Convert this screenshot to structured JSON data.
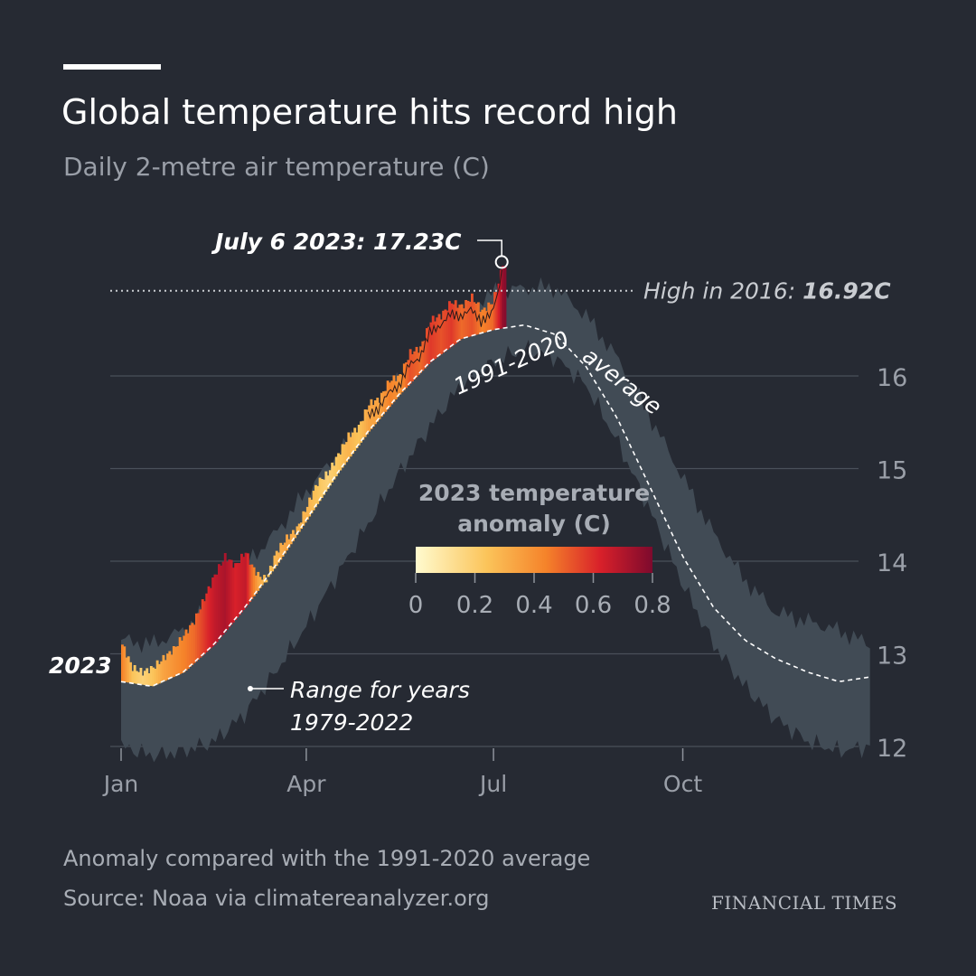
{
  "header": {
    "title": "Global temperature hits record high",
    "subtitle": "Daily 2-metre air temperature (C)"
  },
  "footer": {
    "note": "Anomaly compared with the 1991-2020 average",
    "source": "Source: Noaa via climatereanalyzer.org",
    "brand": "FINANCIAL TIMES"
  },
  "colors": {
    "background": "#262a33",
    "range_band": "#414b55",
    "gridline": "#4a505a",
    "anomaly_low": "#fffbcf",
    "anomaly_mid": "#f5832a",
    "anomaly_high": "#7d0a2d"
  },
  "chart_data": {
    "type": "area",
    "x_axis": {
      "tick_labels": [
        "Jan",
        "Apr",
        "Jul",
        "Oct"
      ],
      "tick_days": [
        0,
        90,
        181,
        273
      ],
      "range_days": [
        0,
        365
      ]
    },
    "y_axis": {
      "tick_values": [
        12,
        13,
        14,
        15,
        16
      ],
      "tick_labels": [
        "12",
        "13",
        "14",
        "15",
        "16"
      ],
      "range": [
        11.9,
        17.4
      ],
      "position": "right"
    },
    "grid": true,
    "range_1979_2022": {
      "label_line1": "Range for years",
      "label_line2": "1979-2022",
      "days": [
        0,
        15,
        30,
        45,
        60,
        75,
        90,
        105,
        120,
        135,
        150,
        165,
        181,
        196,
        211,
        226,
        241,
        256,
        273,
        288,
        303,
        318,
        334,
        349,
        364
      ],
      "upper": [
        13.15,
        13.1,
        13.25,
        13.55,
        13.95,
        14.3,
        14.75,
        15.15,
        15.55,
        15.95,
        16.35,
        16.7,
        16.9,
        16.95,
        16.95,
        16.65,
        16.2,
        15.6,
        14.9,
        14.3,
        13.8,
        13.45,
        13.35,
        13.25,
        13.1
      ],
      "lower": [
        12.0,
        11.9,
        11.95,
        12.05,
        12.35,
        12.8,
        13.3,
        13.85,
        14.4,
        14.95,
        15.45,
        15.9,
        16.15,
        16.3,
        16.2,
        15.9,
        15.3,
        14.6,
        13.75,
        13.1,
        12.65,
        12.3,
        12.05,
        11.95,
        12.0
      ]
    },
    "average_1991_2020": {
      "label": "1991-2020 average",
      "days": [
        0,
        15,
        30,
        45,
        60,
        75,
        90,
        105,
        120,
        135,
        150,
        165,
        181,
        196,
        211,
        226,
        241,
        256,
        273,
        288,
        303,
        318,
        334,
        349,
        364
      ],
      "values": [
        12.7,
        12.65,
        12.8,
        13.1,
        13.5,
        13.95,
        14.45,
        14.95,
        15.4,
        15.8,
        16.15,
        16.4,
        16.5,
        16.55,
        16.45,
        16.1,
        15.55,
        14.85,
        14.05,
        13.5,
        13.15,
        12.95,
        12.8,
        12.7,
        12.75
      ]
    },
    "series_2023": {
      "label": "2023",
      "days": [
        0,
        5,
        10,
        15,
        20,
        25,
        30,
        35,
        40,
        45,
        50,
        55,
        60,
        63,
        66,
        70,
        75,
        80,
        85,
        90,
        95,
        100,
        105,
        110,
        115,
        120,
        125,
        130,
        135,
        140,
        145,
        150,
        155,
        160,
        165,
        170,
        175,
        180,
        183,
        185,
        187
      ],
      "values": [
        13.1,
        12.85,
        12.8,
        12.85,
        12.95,
        13.05,
        13.2,
        13.35,
        13.6,
        13.85,
        14.05,
        13.95,
        14.1,
        13.95,
        13.85,
        13.8,
        14.1,
        14.25,
        14.35,
        14.6,
        14.85,
        14.95,
        15.15,
        15.35,
        15.45,
        15.7,
        15.75,
        15.95,
        16.0,
        16.25,
        16.3,
        16.6,
        16.65,
        16.8,
        16.75,
        16.85,
        16.7,
        16.8,
        17.0,
        17.23,
        17.1
      ],
      "anomaly": [
        0.4,
        0.2,
        0.15,
        0.2,
        0.3,
        0.35,
        0.4,
        0.45,
        0.55,
        0.65,
        0.7,
        0.6,
        0.65,
        0.45,
        0.3,
        0.2,
        0.25,
        0.3,
        0.25,
        0.25,
        0.2,
        0.15,
        0.2,
        0.25,
        0.2,
        0.3,
        0.3,
        0.4,
        0.35,
        0.5,
        0.45,
        0.55,
        0.5,
        0.55,
        0.45,
        0.5,
        0.4,
        0.45,
        0.6,
        0.75,
        0.8
      ]
    },
    "annotations": {
      "peak_label": "July 6 2023: 17.23C",
      "peak_day": 185,
      "peak_value": 17.23,
      "record_label_prefix": "High in 2016: ",
      "record_label_value": "16.92C",
      "record_value": 16.92,
      "average_curve_label": "1991-2020 average"
    },
    "legend": {
      "title_line1": "2023 temperature",
      "title_line2": "anomaly (C)",
      "tick_labels": [
        "0",
        "0.2",
        "0.4",
        "0.6",
        "0.8"
      ],
      "range": [
        0,
        0.8
      ],
      "placement": "center"
    }
  }
}
